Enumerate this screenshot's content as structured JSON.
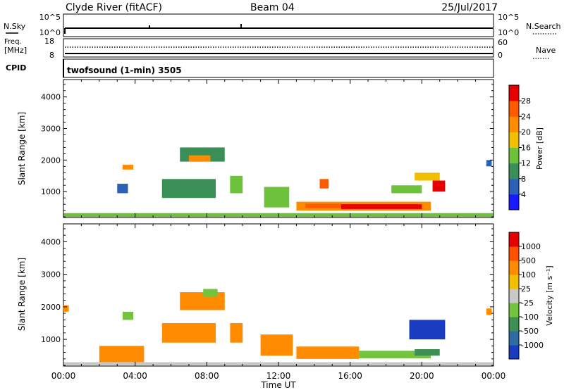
{
  "header": {
    "station": "Clyde River (fitACF)",
    "beam": "Beam 04",
    "date": "25/Jul/2017"
  },
  "nsky_panel": {
    "left_label": "N.Sky",
    "right_label": "N.Search",
    "left_ticks": [
      "10^5",
      "10^0"
    ],
    "right_ticks": [
      "10^5",
      "10^0"
    ]
  },
  "freq_panel": {
    "left_label_1": "Freq.",
    "left_label_2": "[MHz]",
    "right_label": "Nave",
    "left_ticks": [
      "18",
      "8"
    ],
    "right_ticks": [
      "60",
      "0"
    ]
  },
  "cpid_panel": {
    "left_label": "CPID",
    "text": "twofsound (1-min) 3505"
  },
  "chart_data": [
    {
      "type": "heatmap",
      "name": "power",
      "ylabel": "Slant Range [km]",
      "ylim": [
        180,
        4550
      ],
      "yticks": [
        "1000",
        "2000",
        "3000",
        "4000"
      ],
      "xlim_hours": [
        0,
        24
      ],
      "xticks": [
        "00:00",
        "04:00",
        "08:00",
        "12:00",
        "16:00",
        "20:00",
        "00:00"
      ],
      "colorbar_label": "Power [dB]",
      "colorbar_ticks": [
        "4",
        "8",
        "12",
        "16",
        "20",
        "24",
        "28"
      ],
      "colorbar_colors": [
        "#1a1aff",
        "#2c62b5",
        "#3a8f57",
        "#6ec23b",
        "#f0c000",
        "#ff8c00",
        "#ff5a00",
        "#e60000"
      ],
      "patches": [
        {
          "t0": 0.0,
          "t1": 24.0,
          "r0": 200,
          "r1": 320,
          "level": 3
        },
        {
          "t0": 13.0,
          "t1": 20.5,
          "r0": 400,
          "r1": 680,
          "level": 5
        },
        {
          "t0": 15.5,
          "t1": 20.0,
          "r0": 450,
          "r1": 600,
          "level": 7
        },
        {
          "t0": 13.5,
          "t1": 15.5,
          "r0": 480,
          "r1": 620,
          "level": 6
        },
        {
          "t0": 20.6,
          "t1": 21.3,
          "r0": 1000,
          "r1": 1350,
          "level": 7
        },
        {
          "t0": 6.5,
          "t1": 9.0,
          "r0": 1950,
          "r1": 2400,
          "level": 2
        },
        {
          "t0": 7.0,
          "t1": 8.2,
          "r0": 1950,
          "r1": 2150,
          "level": 5
        },
        {
          "t0": 3.3,
          "t1": 3.9,
          "r0": 1700,
          "r1": 1850,
          "level": 5
        },
        {
          "t0": 5.5,
          "t1": 8.5,
          "r0": 800,
          "r1": 1400,
          "level": 2
        },
        {
          "t0": 9.3,
          "t1": 10.0,
          "r0": 950,
          "r1": 1500,
          "level": 3
        },
        {
          "t0": 11.2,
          "t1": 12.6,
          "r0": 500,
          "r1": 1150,
          "level": 3
        },
        {
          "t0": 14.3,
          "t1": 14.8,
          "r0": 1100,
          "r1": 1400,
          "level": 6
        },
        {
          "t0": 18.3,
          "t1": 20.0,
          "r0": 950,
          "r1": 1200,
          "level": 3
        },
        {
          "t0": 19.6,
          "t1": 21.0,
          "r0": 1350,
          "r1": 1600,
          "level": 4
        },
        {
          "t0": 3.0,
          "t1": 3.6,
          "r0": 950,
          "r1": 1250,
          "level": 1
        },
        {
          "t0": 23.6,
          "t1": 23.9,
          "r0": 1800,
          "r1": 2000,
          "level": 1
        }
      ]
    },
    {
      "type": "heatmap",
      "name": "velocity",
      "ylabel": "Slant Range [km]",
      "ylim": [
        180,
        4550
      ],
      "yticks": [
        "1000",
        "2000",
        "3000",
        "4000"
      ],
      "xlim_hours": [
        0,
        24
      ],
      "xticks": [
        "00:00",
        "04:00",
        "08:00",
        "12:00",
        "16:00",
        "20:00",
        "00:00"
      ],
      "xlabel": "Time UT",
      "colorbar_label": "Velocity [m s⁻¹]",
      "colorbar_ticks": [
        "1000",
        "500",
        "100",
        "25",
        "-25",
        "-100",
        "-500",
        "-1000"
      ],
      "colorbar_colors": [
        "#1a3cc0",
        "#2e6ca4",
        "#3f8f55",
        "#72c43c",
        "#c8c8c8",
        "#f0c000",
        "#ff8c00",
        "#ff5000",
        "#e60000"
      ],
      "patches": [
        {
          "t0": 0.0,
          "t1": 24.0,
          "r0": 200,
          "r1": 300,
          "level": 4
        },
        {
          "t0": 13.0,
          "t1": 16.5,
          "r0": 400,
          "r1": 780,
          "level": 6
        },
        {
          "t0": 16.5,
          "t1": 20.5,
          "r0": 420,
          "r1": 650,
          "level": 3
        },
        {
          "t0": 19.6,
          "t1": 21.0,
          "r0": 500,
          "r1": 700,
          "level": 2
        },
        {
          "t0": 19.3,
          "t1": 21.3,
          "r0": 1000,
          "r1": 1600,
          "level": 0
        },
        {
          "t0": 6.5,
          "t1": 9.0,
          "r0": 1900,
          "r1": 2450,
          "level": 6
        },
        {
          "t0": 7.8,
          "t1": 8.6,
          "r0": 2300,
          "r1": 2550,
          "level": 3
        },
        {
          "t0": 5.5,
          "t1": 8.5,
          "r0": 900,
          "r1": 1500,
          "level": 6
        },
        {
          "t0": 9.3,
          "t1": 10.0,
          "r0": 900,
          "r1": 1500,
          "level": 6
        },
        {
          "t0": 11.0,
          "t1": 12.8,
          "r0": 500,
          "r1": 1150,
          "level": 6
        },
        {
          "t0": 2.0,
          "t1": 4.5,
          "r0": 300,
          "r1": 800,
          "level": 6
        },
        {
          "t0": 3.3,
          "t1": 3.9,
          "r0": 1600,
          "r1": 1850,
          "level": 3
        },
        {
          "t0": 23.6,
          "t1": 23.9,
          "r0": 1750,
          "r1": 1950,
          "level": 6
        },
        {
          "t0": 0.0,
          "t1": 0.3,
          "r0": 1850,
          "r1": 2050,
          "level": 6
        }
      ]
    }
  ]
}
